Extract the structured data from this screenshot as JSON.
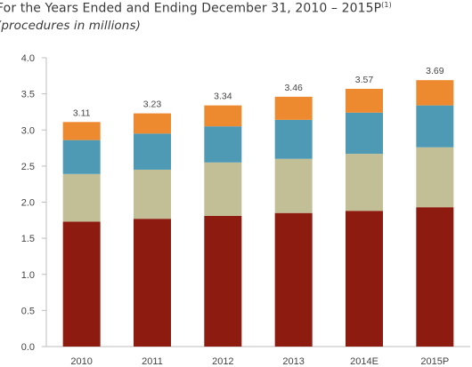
{
  "chart_data": {
    "type": "bar",
    "stacked": true,
    "title": "For the Years Ended and Ending December 31, 2010 – 2015P",
    "title_superscript": "(1)",
    "subtitle": "(procedures in millions)",
    "categories": [
      "2010",
      "2011",
      "2012",
      "2013",
      "2014E",
      "2015P"
    ],
    "series": [
      {
        "color": "#8e1b0f",
        "values": [
          1.73,
          1.77,
          1.81,
          1.85,
          1.88,
          1.93
        ]
      },
      {
        "color": "#c2bf97",
        "values": [
          0.66,
          0.68,
          0.74,
          0.75,
          0.79,
          0.83
        ]
      },
      {
        "color": "#4e9ab4",
        "values": [
          0.47,
          0.5,
          0.5,
          0.54,
          0.57,
          0.58
        ]
      },
      {
        "color": "#ed8a2f",
        "values": [
          0.25,
          0.28,
          0.29,
          0.32,
          0.33,
          0.35
        ]
      }
    ],
    "totals": [
      "3.11",
      "3.23",
      "3.34",
      "3.46",
      "3.57",
      "3.69"
    ],
    "yticks": [
      "0.0",
      "0.5",
      "1.0",
      "1.5",
      "2.0",
      "2.5",
      "3.0",
      "3.5",
      "4.0"
    ],
    "ylim": [
      0,
      4
    ],
    "xlabel": "",
    "ylabel": "",
    "grid": false,
    "legend": "none"
  }
}
